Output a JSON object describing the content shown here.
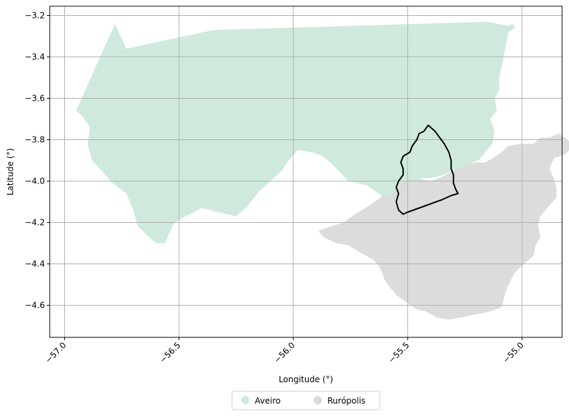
{
  "chart_data": {
    "type": "map",
    "xlabel": "Longitude (°)",
    "ylabel": "Latitude (°)",
    "xlim": [
      -57.065,
      -54.825
    ],
    "ylim": [
      -4.755,
      -3.155
    ],
    "grid": true,
    "legend_placement": "bottom-center",
    "x_ticks": [
      {
        "value": -57.0,
        "label": "−57.0"
      },
      {
        "value": -56.5,
        "label": "−56.5"
      },
      {
        "value": -56.0,
        "label": "−56.0"
      },
      {
        "value": -55.5,
        "label": "−55.5"
      },
      {
        "value": -55.0,
        "label": "−55.0"
      }
    ],
    "y_ticks": [
      {
        "value": -3.2,
        "label": "−3.2"
      },
      {
        "value": -3.4,
        "label": "−3.4"
      },
      {
        "value": -3.6,
        "label": "−3.6"
      },
      {
        "value": -3.8,
        "label": "−3.8"
      },
      {
        "value": -4.0,
        "label": "−4.0"
      },
      {
        "value": -4.2,
        "label": "−4.2"
      },
      {
        "value": -4.4,
        "label": "−4.4"
      },
      {
        "value": -4.6,
        "label": "−4.6"
      }
    ],
    "legend": [
      {
        "label": "Aveiro",
        "color": "#cfeadd"
      },
      {
        "label": "Rurópolis",
        "color": "#dcdcdc"
      }
    ],
    "regions": [
      {
        "id": "region-ruropolis",
        "label": "Rurópolis",
        "color": "#dcdcdc",
        "coords": [
          [
            -55.13,
            -3.89
          ],
          [
            -55.09,
            -3.86
          ],
          [
            -55.06,
            -3.83
          ],
          [
            -55.01,
            -3.82
          ],
          [
            -54.95,
            -3.82
          ],
          [
            -54.92,
            -3.79
          ],
          [
            -54.88,
            -3.79
          ],
          [
            -54.84,
            -3.77
          ],
          [
            -54.8,
            -3.8
          ],
          [
            -54.78,
            -3.83
          ],
          [
            -54.81,
            -3.87
          ],
          [
            -54.86,
            -3.89
          ],
          [
            -54.88,
            -3.94
          ],
          [
            -54.86,
            -3.99
          ],
          [
            -54.85,
            -4.03
          ],
          [
            -54.85,
            -4.08
          ],
          [
            -54.89,
            -4.13
          ],
          [
            -54.92,
            -4.17
          ],
          [
            -54.93,
            -4.22
          ],
          [
            -54.92,
            -4.27
          ],
          [
            -54.94,
            -4.31
          ],
          [
            -54.95,
            -4.36
          ],
          [
            -54.99,
            -4.4
          ],
          [
            -55.03,
            -4.44
          ],
          [
            -55.05,
            -4.48
          ],
          [
            -55.07,
            -4.53
          ],
          [
            -55.08,
            -4.57
          ],
          [
            -55.09,
            -4.61
          ],
          [
            -55.14,
            -4.63
          ],
          [
            -55.18,
            -4.64
          ],
          [
            -55.23,
            -4.65
          ],
          [
            -55.27,
            -4.66
          ],
          [
            -55.32,
            -4.67
          ],
          [
            -55.37,
            -4.66
          ],
          [
            -55.42,
            -4.63
          ],
          [
            -55.46,
            -4.62
          ],
          [
            -55.5,
            -4.59
          ],
          [
            -55.55,
            -4.55
          ],
          [
            -55.58,
            -4.51
          ],
          [
            -55.6,
            -4.48
          ],
          [
            -55.62,
            -4.42
          ],
          [
            -55.65,
            -4.38
          ],
          [
            -55.7,
            -4.35
          ],
          [
            -55.76,
            -4.31
          ],
          [
            -55.81,
            -4.3
          ],
          [
            -55.87,
            -4.27
          ],
          [
            -55.89,
            -4.24
          ],
          [
            -55.84,
            -4.22
          ],
          [
            -55.78,
            -4.2
          ],
          [
            -55.73,
            -4.16
          ],
          [
            -55.67,
            -4.12
          ],
          [
            -55.62,
            -4.08
          ],
          [
            -55.58,
            -4.04
          ],
          [
            -55.53,
            -4.0
          ],
          [
            -55.5,
            -3.98
          ],
          [
            -55.45,
            -3.99
          ],
          [
            -55.4,
            -4.0
          ],
          [
            -55.35,
            -3.98
          ],
          [
            -55.3,
            -3.95
          ],
          [
            -55.25,
            -3.92
          ],
          [
            -55.2,
            -3.91
          ],
          [
            -55.16,
            -3.91
          ]
        ]
      },
      {
        "id": "region-aveiro",
        "label": "Aveiro",
        "color": "#cfeadd",
        "coords": [
          [
            -56.95,
            -3.66
          ],
          [
            -56.78,
            -3.24
          ],
          [
            -56.73,
            -3.36
          ],
          [
            -56.35,
            -3.27
          ],
          [
            -55.15,
            -3.23
          ],
          [
            -55.06,
            -3.25
          ],
          [
            -55.04,
            -3.24
          ],
          [
            -55.03,
            -3.26
          ],
          [
            -55.06,
            -3.28
          ],
          [
            -55.07,
            -3.34
          ],
          [
            -55.08,
            -3.4
          ],
          [
            -55.1,
            -3.5
          ],
          [
            -55.1,
            -3.56
          ],
          [
            -55.12,
            -3.6
          ],
          [
            -55.11,
            -3.66
          ],
          [
            -55.14,
            -3.7
          ],
          [
            -55.12,
            -3.76
          ],
          [
            -55.13,
            -3.82
          ],
          [
            -55.16,
            -3.86
          ],
          [
            -55.19,
            -3.9
          ],
          [
            -55.24,
            -3.92
          ],
          [
            -55.3,
            -3.95
          ],
          [
            -55.37,
            -3.98
          ],
          [
            -55.45,
            -3.99
          ],
          [
            -55.52,
            -4.0
          ],
          [
            -55.56,
            -4.05
          ],
          [
            -55.6,
            -4.08
          ],
          [
            -55.68,
            -4.02
          ],
          [
            -55.76,
            -4.0
          ],
          [
            -55.82,
            -3.93
          ],
          [
            -55.87,
            -3.88
          ],
          [
            -55.92,
            -3.86
          ],
          [
            -55.98,
            -3.85
          ],
          [
            -56.02,
            -3.9
          ],
          [
            -56.05,
            -3.95
          ],
          [
            -56.1,
            -4.0
          ],
          [
            -56.15,
            -4.05
          ],
          [
            -56.2,
            -4.12
          ],
          [
            -56.25,
            -4.17
          ],
          [
            -56.33,
            -4.15
          ],
          [
            -56.4,
            -4.13
          ],
          [
            -56.47,
            -4.17
          ],
          [
            -56.52,
            -4.2
          ],
          [
            -56.55,
            -4.27
          ],
          [
            -56.56,
            -4.3
          ],
          [
            -56.6,
            -4.3
          ],
          [
            -56.64,
            -4.26
          ],
          [
            -56.68,
            -4.22
          ],
          [
            -56.7,
            -4.14
          ],
          [
            -56.73,
            -4.06
          ],
          [
            -56.79,
            -4.01
          ],
          [
            -56.83,
            -3.96
          ],
          [
            -56.88,
            -3.9
          ],
          [
            -56.9,
            -3.82
          ],
          [
            -56.89,
            -3.74
          ],
          [
            -56.92,
            -3.69
          ]
        ]
      }
    ],
    "outline": {
      "id": "highlight-outline",
      "color": "#000000",
      "coords": [
        [
          -55.41,
          -3.73
        ],
        [
          -55.38,
          -3.76
        ],
        [
          -55.36,
          -3.79
        ],
        [
          -55.34,
          -3.82
        ],
        [
          -55.32,
          -3.86
        ],
        [
          -55.31,
          -3.9
        ],
        [
          -55.31,
          -3.94
        ],
        [
          -55.3,
          -3.97
        ],
        [
          -55.3,
          -4.01
        ],
        [
          -55.29,
          -4.04
        ],
        [
          -55.28,
          -4.06
        ],
        [
          -55.31,
          -4.07
        ],
        [
          -55.35,
          -4.09
        ],
        [
          -55.4,
          -4.11
        ],
        [
          -55.45,
          -4.13
        ],
        [
          -55.5,
          -4.15
        ],
        [
          -55.52,
          -4.16
        ],
        [
          -55.54,
          -4.14
        ],
        [
          -55.55,
          -4.1
        ],
        [
          -55.54,
          -4.06
        ],
        [
          -55.55,
          -4.03
        ],
        [
          -55.54,
          -4.0
        ],
        [
          -55.52,
          -3.97
        ],
        [
          -55.52,
          -3.94
        ],
        [
          -55.53,
          -3.91
        ],
        [
          -55.52,
          -3.88
        ],
        [
          -55.49,
          -3.86
        ],
        [
          -55.48,
          -3.83
        ],
        [
          -55.46,
          -3.8
        ],
        [
          -55.45,
          -3.77
        ],
        [
          -55.43,
          -3.76
        ]
      ]
    }
  }
}
